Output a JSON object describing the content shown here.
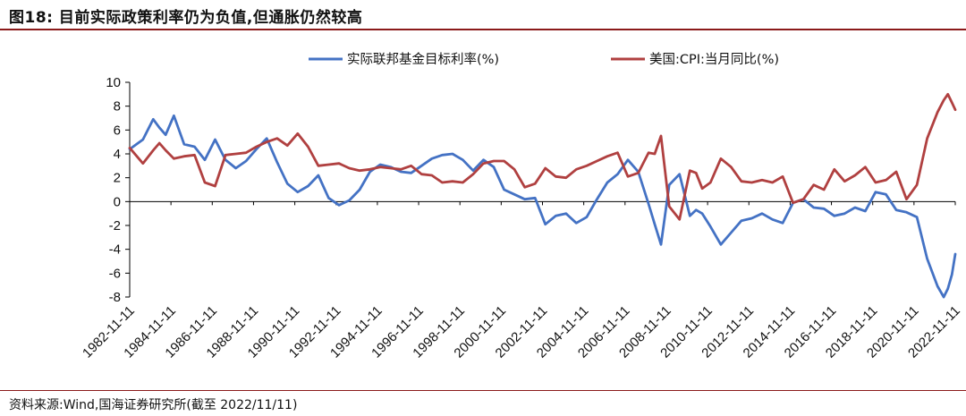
{
  "title": "图18:  目前实际政策利率仍为负值,但通胀仍然较高",
  "source": "资料来源:Wind,国海证券研究所(截至 2022/11/11)",
  "colors": {
    "series_blue": "#4472c4",
    "series_red": "#b04040",
    "rule": "#8b1a1a"
  },
  "chart_data": {
    "type": "line",
    "title": "目前实际政策利率仍为负值,但通胀仍然较高",
    "xlabel": "",
    "ylabel": "",
    "ylim": [
      -8,
      10
    ],
    "yticks": [
      10,
      8,
      6,
      4,
      2,
      0,
      -2,
      -4,
      -6,
      -8
    ],
    "ytick_labels": [
      "10",
      "8",
      "6",
      "4",
      "2",
      "0",
      "-2",
      "-4",
      "-6",
      "-8"
    ],
    "xlim": [
      1982.86,
      2022.86
    ],
    "xtick_labels": [
      "1982-11-11",
      "1984-11-11",
      "1986-11-11",
      "1988-11-11",
      "1990-11-11",
      "1992-11-11",
      "1994-11-11",
      "1996-11-11",
      "1998-11-11",
      "2000-11-11",
      "2002-11-11",
      "2004-11-11",
      "2006-11-11",
      "2008-11-11",
      "2010-11-11",
      "2012-11-11",
      "2014-11-11",
      "2016-11-11",
      "2018-11-11",
      "2020-11-11",
      "2022-11-11"
    ],
    "grid": false,
    "legend_position": "top",
    "series": [
      {
        "name": "实际联邦基金目标利率(%)",
        "color": "#4472c4",
        "x": [
          1982.86,
          1983.5,
          1984.0,
          1984.3,
          1984.6,
          1985.0,
          1985.5,
          1986.0,
          1986.5,
          1987.0,
          1987.5,
          1988.0,
          1988.5,
          1989.0,
          1989.5,
          1990.0,
          1990.5,
          1991.0,
          1991.5,
          1992.0,
          1992.5,
          1993.0,
          1993.5,
          1994.0,
          1994.5,
          1995.0,
          1995.5,
          1996.0,
          1996.5,
          1997.0,
          1997.5,
          1998.0,
          1998.5,
          1999.0,
          1999.5,
          2000.0,
          2000.5,
          2001.0,
          2001.5,
          2002.0,
          2002.5,
          2003.0,
          2003.5,
          2004.0,
          2004.5,
          2005.0,
          2005.5,
          2006.0,
          2006.5,
          2007.0,
          2007.5,
          2008.0,
          2008.3,
          2008.6,
          2009.0,
          2009.5,
          2010.0,
          2010.3,
          2010.6,
          2011.0,
          2011.5,
          2012.0,
          2012.5,
          2013.0,
          2013.5,
          2014.0,
          2014.5,
          2015.0,
          2015.5,
          2016.0,
          2016.5,
          2017.0,
          2017.5,
          2018.0,
          2018.5,
          2019.0,
          2019.5,
          2020.0,
          2020.5,
          2021.0,
          2021.5,
          2022.0,
          2022.3,
          2022.5,
          2022.7,
          2022.86
        ],
        "y": [
          4.4,
          5.2,
          6.9,
          6.2,
          5.6,
          7.2,
          4.8,
          4.6,
          3.5,
          5.2,
          3.5,
          2.8,
          3.4,
          4.4,
          5.3,
          3.3,
          1.5,
          0.8,
          1.3,
          2.2,
          0.3,
          -0.3,
          0.1,
          1.0,
          2.5,
          3.1,
          2.9,
          2.5,
          2.4,
          3.0,
          3.6,
          3.9,
          4.0,
          3.5,
          2.6,
          3.5,
          2.9,
          1.0,
          0.6,
          0.2,
          0.3,
          -1.9,
          -1.2,
          -1.0,
          -1.8,
          -1.3,
          0.2,
          1.6,
          2.3,
          3.5,
          2.5,
          -0.2,
          -1.9,
          -3.6,
          1.4,
          2.3,
          -1.2,
          -0.7,
          -1.0,
          -2.1,
          -3.6,
          -2.6,
          -1.6,
          -1.4,
          -1.0,
          -1.5,
          -1.8,
          -0.1,
          0.2,
          -0.5,
          -0.6,
          -1.2,
          -1.0,
          -0.5,
          -0.8,
          0.8,
          0.6,
          -0.7,
          -0.9,
          -1.3,
          -4.8,
          -7.1,
          -8.0,
          -7.3,
          -6.1,
          -4.4
        ]
      },
      {
        "name": "美国:CPI:当月同比(%)",
        "color": "#b04040",
        "x": [
          1982.86,
          1983.5,
          1984.0,
          1984.3,
          1984.6,
          1985.0,
          1985.5,
          1986.0,
          1986.5,
          1987.0,
          1987.5,
          1988.0,
          1988.5,
          1989.0,
          1989.5,
          1990.0,
          1990.5,
          1991.0,
          1991.5,
          1992.0,
          1992.5,
          1993.0,
          1993.5,
          1994.0,
          1994.5,
          1995.0,
          1995.5,
          1996.0,
          1996.5,
          1997.0,
          1997.5,
          1998.0,
          1998.5,
          1999.0,
          1999.5,
          2000.0,
          2000.5,
          2001.0,
          2001.5,
          2002.0,
          2002.5,
          2003.0,
          2003.5,
          2004.0,
          2004.5,
          2005.0,
          2005.5,
          2006.0,
          2006.5,
          2007.0,
          2007.5,
          2008.0,
          2008.3,
          2008.6,
          2009.0,
          2009.5,
          2010.0,
          2010.3,
          2010.6,
          2011.0,
          2011.5,
          2012.0,
          2012.5,
          2013.0,
          2013.5,
          2014.0,
          2014.5,
          2015.0,
          2015.5,
          2016.0,
          2016.5,
          2017.0,
          2017.5,
          2018.0,
          2018.5,
          2019.0,
          2019.5,
          2020.0,
          2020.5,
          2021.0,
          2021.5,
          2022.0,
          2022.3,
          2022.5,
          2022.7,
          2022.86
        ],
        "y": [
          4.5,
          3.2,
          4.3,
          4.9,
          4.3,
          3.6,
          3.8,
          3.9,
          1.6,
          1.3,
          3.9,
          4.0,
          4.1,
          4.6,
          5.0,
          5.3,
          4.7,
          5.7,
          4.6,
          3.0,
          3.1,
          3.2,
          2.8,
          2.6,
          2.7,
          2.9,
          2.8,
          2.7,
          3.0,
          2.3,
          2.2,
          1.6,
          1.7,
          1.6,
          2.3,
          3.2,
          3.4,
          3.4,
          2.7,
          1.2,
          1.5,
          2.8,
          2.1,
          2.0,
          2.7,
          3.0,
          3.4,
          3.8,
          4.1,
          2.1,
          2.4,
          4.1,
          4.0,
          5.5,
          -0.4,
          -1.5,
          2.6,
          2.4,
          1.1,
          1.6,
          3.6,
          2.9,
          1.7,
          1.6,
          1.8,
          1.6,
          2.1,
          -0.1,
          0.2,
          1.4,
          1.0,
          2.7,
          1.7,
          2.2,
          2.9,
          1.6,
          1.8,
          2.5,
          0.2,
          1.4,
          5.3,
          7.5,
          8.5,
          9.0,
          8.3,
          7.7
        ]
      }
    ]
  }
}
